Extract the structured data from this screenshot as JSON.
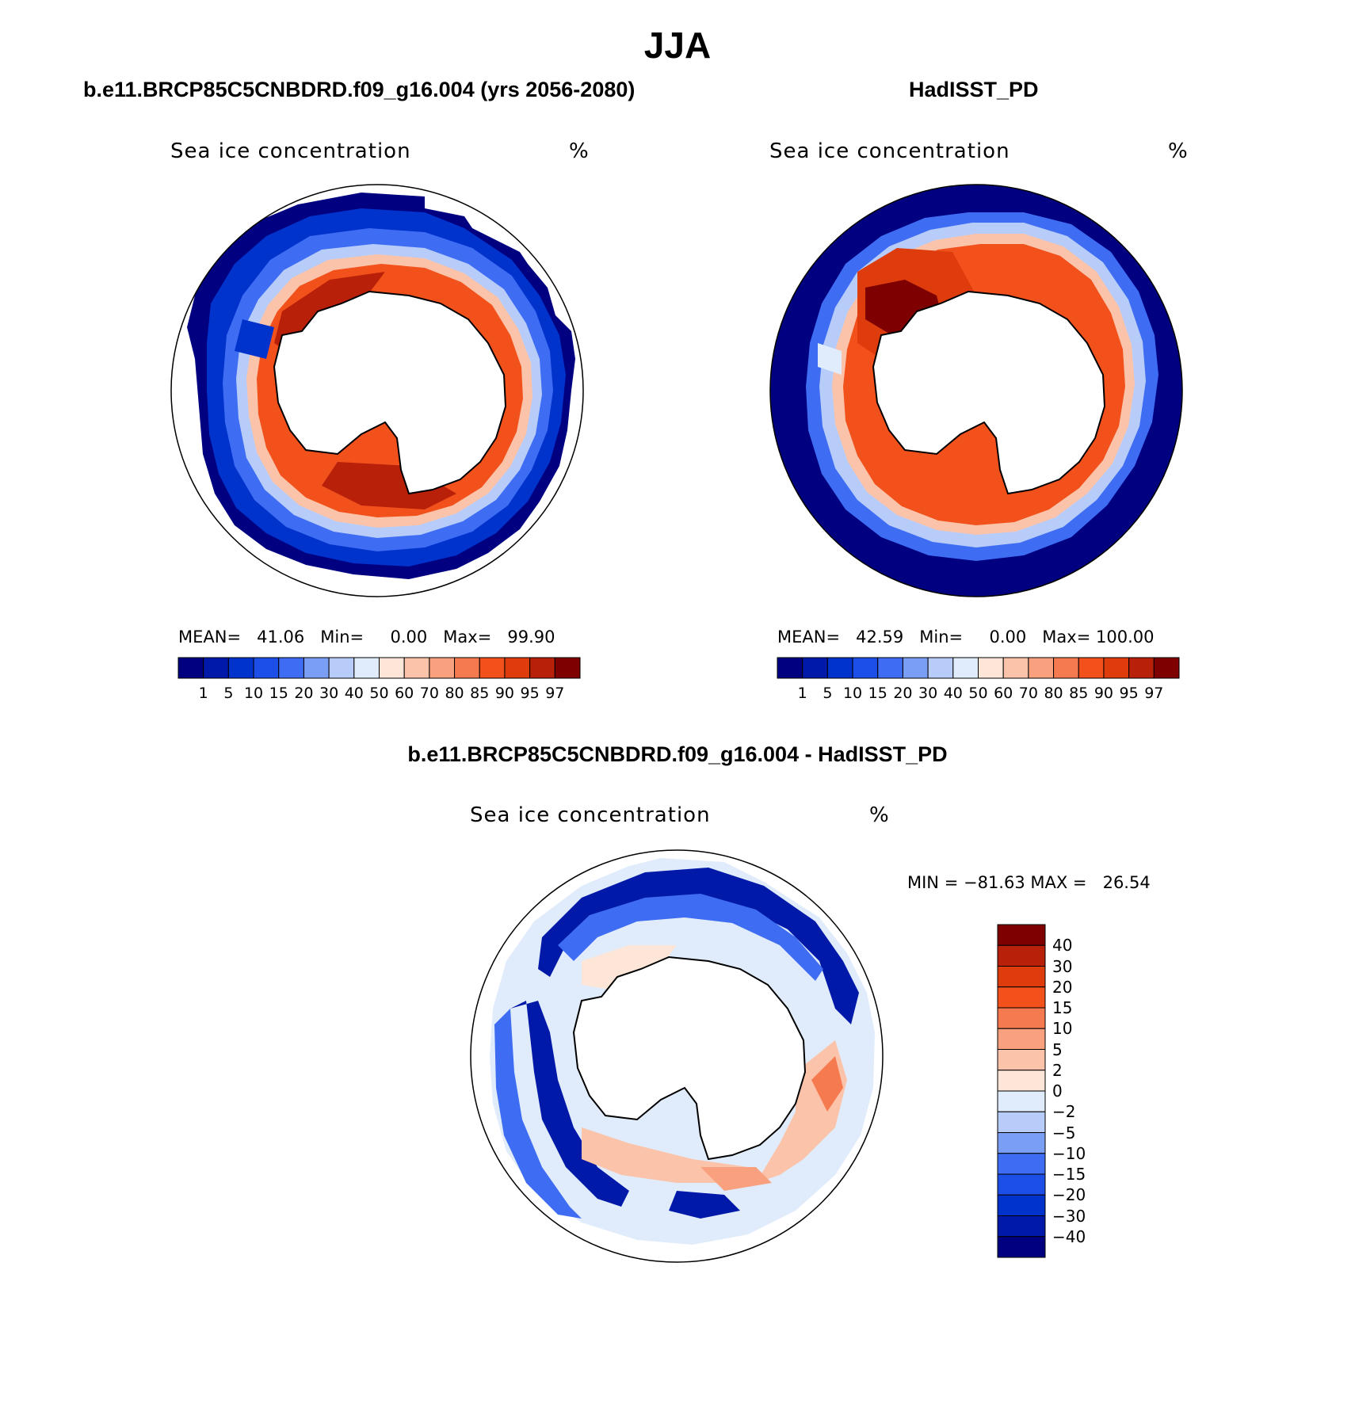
{
  "title": "JJA",
  "colors": {
    "seq": [
      "#000080",
      "#0019a8",
      "#0032cc",
      "#1c4fe8",
      "#3e6cf3",
      "#7b9ef5",
      "#b8ccfa",
      "#e0ecfc",
      "#fde6d8",
      "#fbc4aa",
      "#f9a07e",
      "#f67a50",
      "#f2511c",
      "#de3c0d",
      "#b8200a",
      "#7f0000"
    ],
    "diff": [
      "#000080",
      "#0019a8",
      "#0032cc",
      "#1c4fe8",
      "#3e6cf3",
      "#7b9ef5",
      "#b8ccfa",
      "#e0ecfc",
      "#fde6d8",
      "#fbc4aa",
      "#f9a07e",
      "#f67a50",
      "#f2511c",
      "#de3c0d",
      "#b8200a",
      "#7f0000"
    ]
  },
  "panels": [
    {
      "id": "model",
      "title": "b.e11.BRCP85C5CNBDRD.f09_g16.004 (yrs 2056-2080)",
      "variable": "Sea ice concentration",
      "units": "%",
      "stats": {
        "mean_label": "MEAN=",
        "mean": "41.06",
        "min_label": "Min=",
        "min": "0.00",
        "max_label": "Max=",
        "max": "99.90"
      },
      "levels": [
        "1",
        "5",
        "10",
        "15",
        "20",
        "30",
        "40",
        "50",
        "60",
        "70",
        "80",
        "85",
        "90",
        "95",
        "97"
      ],
      "full_ocean": false
    },
    {
      "id": "obs",
      "title": "HadISST_PD",
      "variable": "Sea ice concentration",
      "units": "%",
      "stats": {
        "mean_label": "MEAN=",
        "mean": "42.59",
        "min_label": "Min=",
        "min": "0.00",
        "max_label": "Max=",
        "max": "100.00"
      },
      "levels": [
        "1",
        "5",
        "10",
        "15",
        "20",
        "30",
        "40",
        "50",
        "60",
        "70",
        "80",
        "85",
        "90",
        "95",
        "97"
      ],
      "full_ocean": true
    }
  ],
  "difference": {
    "title": "b.e11.BRCP85C5CNBDRD.f09_g16.004 - HadISST_PD",
    "variable": "Sea ice concentration",
    "units": "%",
    "stats": {
      "min_label": "MIN =",
      "min": "−81.63",
      "max_label": "MAX =",
      "max": "26.54"
    },
    "levels": [
      "40",
      "30",
      "20",
      "15",
      "10",
      "5",
      "2",
      "0",
      "−2",
      "−5",
      "−10",
      "−15",
      "−20",
      "−30",
      "−40"
    ]
  }
}
